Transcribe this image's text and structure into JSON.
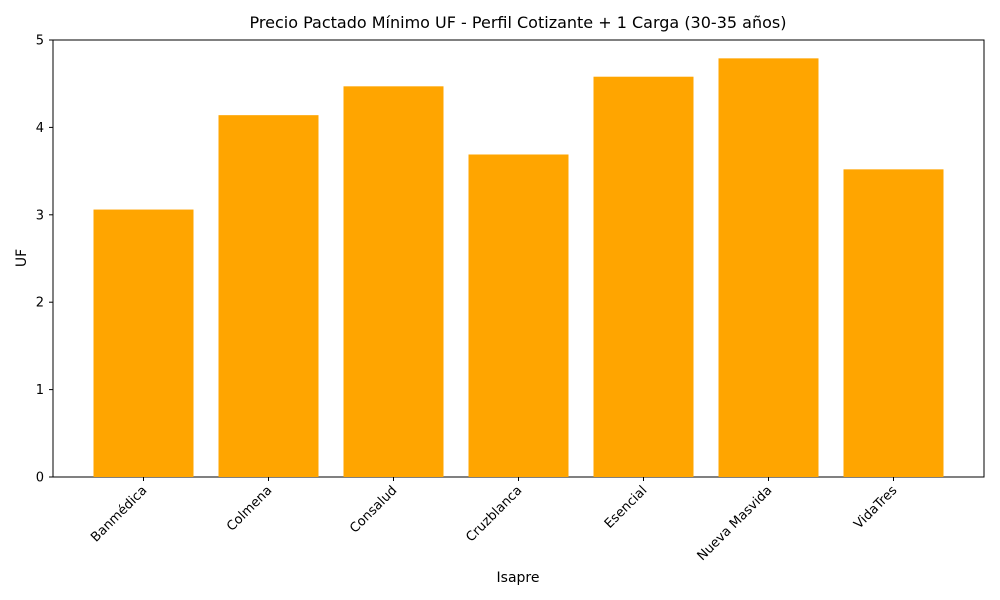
{
  "chart_data": {
    "type": "bar",
    "title": "Precio Pactado Mínimo UF - Perfil Cotizante + 1 Carga (30-35 años)",
    "xlabel": "Isapre",
    "ylabel": "UF",
    "categories": [
      "Banmédica",
      "Colmena",
      "Consalud",
      "Cruzblanca",
      "Esencial",
      "Nueva Masvida",
      "VidaTres"
    ],
    "values": [
      3.06,
      4.14,
      4.47,
      3.69,
      4.58,
      4.79,
      3.52
    ],
    "ylim": [
      0,
      5
    ],
    "yticks": [
      "0",
      "1",
      "2",
      "3",
      "4",
      "5"
    ],
    "bar_color": "#FFA500",
    "grid": false
  }
}
